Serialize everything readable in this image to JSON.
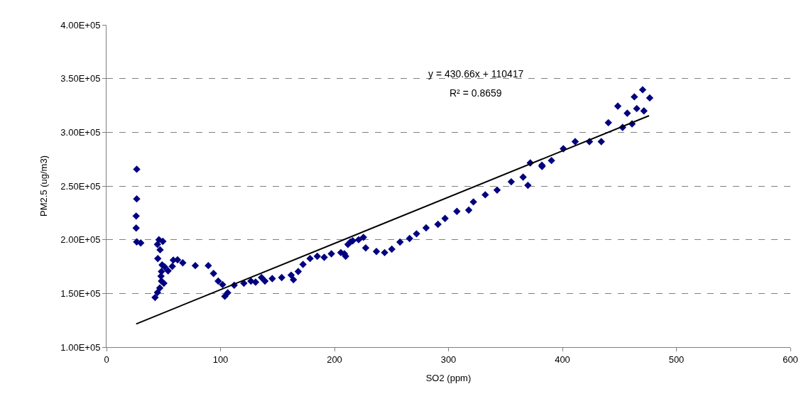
{
  "chart_data": {
    "type": "scatter",
    "xlabel": "SO2 (ppm)",
    "ylabel": "PM2.5 (ug/m3)",
    "annotations": [
      "y = 430.66x + 110417",
      "R² = 0.8659"
    ],
    "xlim": [
      0,
      600
    ],
    "xticks": [
      0,
      100,
      200,
      300,
      400,
      500,
      600
    ],
    "ylim": [
      100000,
      400000
    ],
    "yticks": [
      {
        "value": 100000,
        "label": "1.00E+05"
      },
      {
        "value": 150000,
        "label": "1.50E+05"
      },
      {
        "value": 200000,
        "label": "2.00E+05"
      },
      {
        "value": 250000,
        "label": "2.50E+05"
      },
      {
        "value": 300000,
        "label": "3.00E+05"
      },
      {
        "value": 350000,
        "label": "3.50E+05"
      },
      {
        "value": 400000,
        "label": "4.00E+05"
      }
    ],
    "grid": "y",
    "series": [
      {
        "marker": "diamond",
        "color": "#000080",
        "x": [
          26.5,
          26.5,
          26,
          26,
          26.5,
          30,
          44.7,
          46,
          49.4,
          47,
          45,
          48.8,
          51,
          54,
          57.7,
          58.6,
          62.3,
          66.9,
          77.9,
          89.3,
          93.9,
          98,
          101.8,
          103.8,
          106.3,
          42.6,
          44.7,
          46.7,
          48.2,
          50.3,
          47.8,
          48.2,
          112,
          120.5,
          126.7,
          130.8,
          136,
          139,
          145.4,
          153.7,
          162,
          164,
          168.2,
          172.4,
          178.6,
          184.9,
          191,
          197.3,
          205.6,
          208.7,
          209.8,
          211.8,
          213.9,
          216,
          221.2,
          225.4,
          227.4,
          236.8,
          244,
          250.3,
          257.5,
          265.9,
          272,
          280.4,
          290.8,
          297,
          307.4,
          317.8,
          321.9,
          332.3,
          342.7,
          355.1,
          365.5,
          369.7,
          371.8,
          382,
          382.1,
          390.4,
          400.8,
          411.2,
          423.7,
          434.1,
          440.3,
          448.6,
          452.8,
          456.9,
          461.1,
          463.1,
          465.2,
          470.4,
          471.5,
          476.6
        ],
        "values": [
          265600,
          238000,
          222000,
          210800,
          198000,
          197000,
          195600,
          200000,
          198500,
          190600,
          182400,
          176500,
          174700,
          171000,
          175200,
          181000,
          181300,
          178500,
          175900,
          175900,
          168600,
          161500,
          158200,
          147300,
          150600,
          146200,
          150800,
          155000,
          161500,
          159400,
          166000,
          170400,
          157600,
          159400,
          161500,
          160500,
          164800,
          161500,
          163800,
          164800,
          167000,
          162700,
          170400,
          177000,
          182500,
          184600,
          183600,
          186900,
          188000,
          186900,
          184600,
          195600,
          197800,
          199000,
          200000,
          202200,
          192300,
          189000,
          188000,
          191200,
          197800,
          201100,
          205500,
          211000,
          214300,
          219800,
          226400,
          227500,
          235200,
          241800,
          246200,
          253900,
          258300,
          250600,
          271500,
          269300,
          268200,
          273700,
          284700,
          291300,
          291300,
          291300,
          308900,
          324300,
          304500,
          317700,
          307800,
          333000,
          322100,
          339600,
          319900,
          332000
        ]
      },
      {
        "type": "line",
        "marker": "none",
        "color": "#000000",
        "x": [
          26,
          476
        ],
        "values": [
          121600,
          315400
        ]
      }
    ]
  }
}
